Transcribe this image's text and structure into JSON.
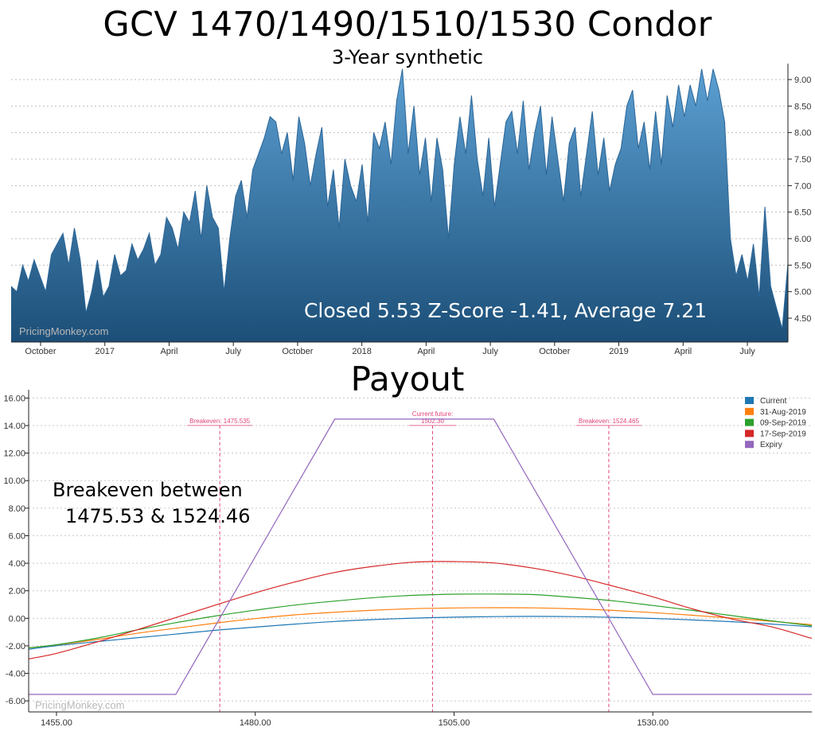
{
  "title": "GCV 1470/1490/1510/1530 Condor",
  "subtitle": "3-Year synthetic",
  "payout_title": "Payout",
  "watermark": "PricingMonkey.com",
  "colors": {
    "area_top": "#5b9fd2",
    "area_bottom": "#1c4f78",
    "area_line": "#2a6597",
    "current": "#1f77b4",
    "aug31": "#ff7f0e",
    "sep09": "#2ca02c",
    "sep17": "#d62728",
    "expiry": "#9467bd",
    "marker": "#e0457b"
  },
  "chart_data": [
    {
      "type": "area",
      "title": "GCV 1470/1490/1510/1530 Condor",
      "subtitle": "3-Year synthetic",
      "x_tick_labels": [
        "October",
        "2017",
        "April",
        "July",
        "October",
        "2018",
        "April",
        "July",
        "October",
        "2019",
        "April",
        "July"
      ],
      "y_ticks": [
        "4.50",
        "5.00",
        "5.50",
        "6.00",
        "6.50",
        "7.00",
        "7.50",
        "8.00",
        "8.50",
        "9.00"
      ],
      "ylim": [
        4.05,
        9.3
      ],
      "y_axis_side": "right",
      "annotation": "Closed 5.53 Z-Score -1.41, Average 7.21",
      "series": [
        {
          "values": [
            5.1,
            5.0,
            5.5,
            5.2,
            5.6,
            5.3,
            5.0,
            5.7,
            5.9,
            6.1,
            5.5,
            6.2,
            5.6,
            4.6,
            5.0,
            5.6,
            4.9,
            5.1,
            5.7,
            5.3,
            5.4,
            5.9,
            5.6,
            5.8,
            6.1,
            5.5,
            5.7,
            6.4,
            6.2,
            5.8,
            6.5,
            6.3,
            6.9,
            6.0,
            7.0,
            6.4,
            6.2,
            5.0,
            6.0,
            6.8,
            7.1,
            6.4,
            7.3,
            7.6,
            7.9,
            8.3,
            8.2,
            7.6,
            8.0,
            7.1,
            8.3,
            7.8,
            7.0,
            7.6,
            8.1,
            6.6,
            7.3,
            6.2,
            7.5,
            7.0,
            6.7,
            7.4,
            6.3,
            8.0,
            7.7,
            8.2,
            7.4,
            8.6,
            9.2,
            7.6,
            8.5,
            7.2,
            7.9,
            6.7,
            7.9,
            7.3,
            6.0,
            7.4,
            8.3,
            7.6,
            8.7,
            7.5,
            6.8,
            7.9,
            6.6,
            7.4,
            8.2,
            8.4,
            7.6,
            8.6,
            7.3,
            8.0,
            8.5,
            7.2,
            8.3,
            7.5,
            6.7,
            7.8,
            8.1,
            6.8,
            7.6,
            8.4,
            7.2,
            7.9,
            6.9,
            7.4,
            7.7,
            8.5,
            8.8,
            7.7,
            8.2,
            7.3,
            8.4,
            7.4,
            8.7,
            8.1,
            8.9,
            8.3,
            8.9,
            8.5,
            9.2,
            8.6,
            9.2,
            8.8,
            8.2,
            6.0,
            5.3,
            5.7,
            5.2,
            5.9,
            4.9,
            6.6,
            5.1,
            4.7,
            4.3,
            5.53
          ]
        }
      ]
    },
    {
      "type": "line",
      "title": "Payout",
      "x_tick_values": [
        1455,
        1480,
        1505,
        1530
      ],
      "x_tick_labels": [
        "1455.00",
        "1480.00",
        "1505.00",
        "1530.00"
      ],
      "y_ticks": [
        -6,
        -4,
        -2,
        0,
        2,
        4,
        6,
        8,
        10,
        12,
        14,
        16
      ],
      "y_tick_labels": [
        "-6.00",
        "-4.00",
        "-2.00",
        "0.00",
        "2.00",
        "4.00",
        "6.00",
        "8.00",
        "10.00",
        "12.00",
        "14.00",
        "16.00"
      ],
      "xlim": [
        1451.5,
        1550
      ],
      "ylim": [
        -6.8,
        16.6
      ],
      "x": [
        1451.5,
        1455,
        1460,
        1465,
        1470,
        1475,
        1480,
        1485,
        1490,
        1495,
        1500,
        1505,
        1510,
        1515,
        1520,
        1525,
        1530,
        1535,
        1540,
        1545,
        1550
      ],
      "series": [
        {
          "name": "Current",
          "values": [
            -2.25,
            -1.99,
            -1.7,
            -1.42,
            -1.15,
            -0.87,
            -0.64,
            -0.42,
            -0.23,
            -0.09,
            0.01,
            0.08,
            0.12,
            0.14,
            0.12,
            0.07,
            -0.01,
            -0.12,
            -0.25,
            -0.42,
            -0.62
          ]
        },
        {
          "name": "31-Aug-2019",
          "values": [
            -2.15,
            -1.93,
            -1.55,
            -1.1,
            -0.72,
            -0.35,
            -0.02,
            0.25,
            0.44,
            0.59,
            0.7,
            0.75,
            0.77,
            0.76,
            0.69,
            0.57,
            0.41,
            0.22,
            0.01,
            -0.22,
            -0.46
          ]
        },
        {
          "name": "09-Sep-2019",
          "values": [
            -2.15,
            -1.92,
            -1.45,
            -0.86,
            -0.32,
            0.17,
            0.59,
            0.96,
            1.25,
            1.5,
            1.67,
            1.75,
            1.76,
            1.72,
            1.52,
            1.27,
            0.93,
            0.57,
            0.19,
            -0.19,
            -0.54
          ]
        },
        {
          "name": "17-Sep-2019",
          "values": [
            -2.95,
            -2.55,
            -1.74,
            -0.86,
            0.05,
            0.96,
            1.85,
            2.64,
            3.33,
            3.78,
            4.08,
            4.12,
            4.02,
            3.64,
            3.07,
            2.34,
            1.56,
            0.68,
            -0.06,
            -0.63,
            -1.46
          ]
        }
      ],
      "expiry": {
        "name": "Expiry",
        "x": [
          1451.5,
          1470,
          1490,
          1510,
          1530,
          1550
        ],
        "values": [
          -5.53,
          -5.53,
          14.47,
          14.47,
          -5.53,
          -5.53
        ]
      },
      "legend_position": "top-right",
      "legend": [
        "Current",
        "31-Aug-2019",
        "09-Sep-2019",
        "17-Sep-2019",
        "Expiry"
      ],
      "markers": [
        {
          "x": 1475.535,
          "label": "Breakeven: 1475.535"
        },
        {
          "x": 1502.3,
          "label_line1": "Current future:",
          "label_line2": "1502.30"
        },
        {
          "x": 1524.465,
          "label": "Breakeven: 1524.465"
        }
      ],
      "annotation_lines": [
        "Breakeven between",
        "1475.53 & 1524.46"
      ]
    }
  ]
}
